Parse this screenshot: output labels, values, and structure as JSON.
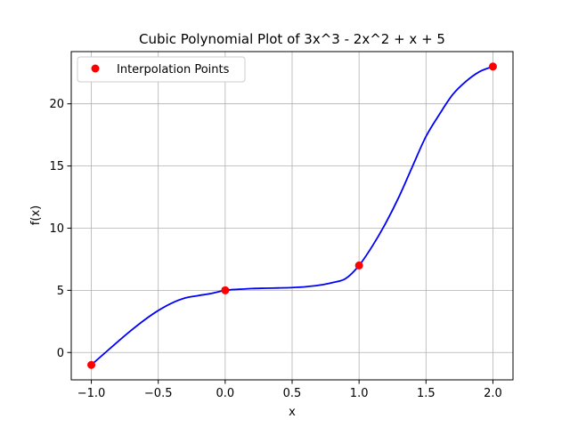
{
  "chart_data": {
    "type": "line",
    "title": "Cubic Polynomial Plot of 3x^3 - 2x^2 + x + 5",
    "xlabel": "x",
    "ylabel": "f(x)",
    "xlim": [
      -1.15,
      2.15
    ],
    "ylim": [
      -2.2,
      24.2
    ],
    "x_ticks": [
      -1.0,
      -0.5,
      0.0,
      0.5,
      1.0,
      1.5,
      2.0
    ],
    "x_tick_labels": [
      "−1.0",
      "−0.5",
      "0.0",
      "0.5",
      "1.0",
      "1.5",
      "2.0"
    ],
    "y_ticks": [
      0,
      5,
      10,
      15,
      20
    ],
    "y_tick_labels": [
      "0",
      "5",
      "10",
      "15",
      "20"
    ],
    "grid": true,
    "legend_placement": "top-left",
    "curve": {
      "x": [
        -1.0,
        -0.9,
        -0.8,
        -0.7,
        -0.6,
        -0.5,
        -0.4,
        -0.3,
        -0.2,
        -0.1,
        0.0,
        0.1,
        0.2,
        0.3,
        0.4,
        0.5,
        0.6,
        0.7,
        0.8,
        0.9,
        1.0,
        1.1,
        1.2,
        1.3,
        1.4,
        1.5,
        1.6,
        1.7,
        1.8,
        1.9,
        2.0
      ],
      "y": [
        -1.0,
        -0.05,
        0.89,
        1.8,
        2.64,
        3.375,
        3.968,
        4.381,
        4.576,
        4.757,
        5.0,
        5.083,
        5.144,
        5.171,
        5.192,
        5.225,
        5.288,
        5.409,
        5.616,
        5.947,
        7.0,
        8.573,
        10.424,
        12.561,
        14.992,
        17.375,
        19.148,
        20.749,
        21.816,
        22.587,
        23.0
      ],
      "color": "#0000ff"
    },
    "series": [
      {
        "name": "Interpolation Points",
        "type": "scatter",
        "x": [
          -1.0,
          0.0,
          1.0,
          2.0
        ],
        "y": [
          -1.0,
          5.0,
          7.0,
          23.0
        ],
        "color": "#ff0000"
      }
    ]
  }
}
